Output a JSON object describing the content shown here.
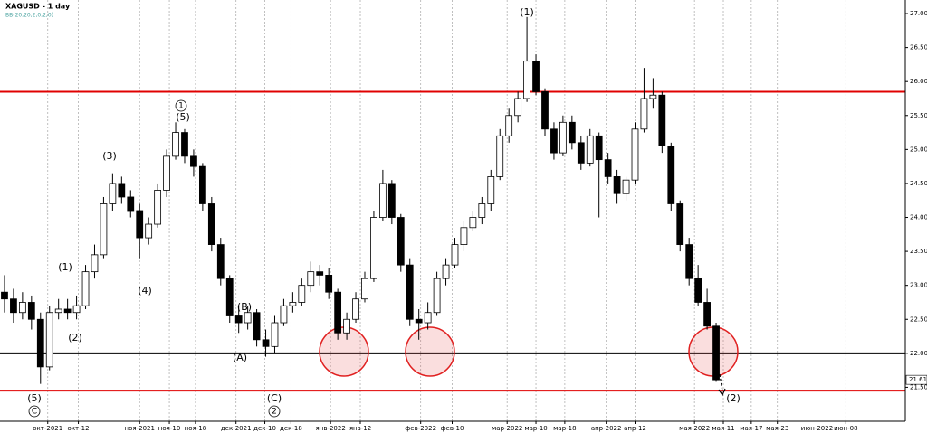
{
  "chart_data": {
    "type": "candlestick",
    "title": "XAGUSD - 1 day",
    "indicator": "BB(20,20,2,0,2,0)",
    "up_color": "#ffffff",
    "down_color": "#000000",
    "candles": [
      [
        22.9,
        23.15,
        22.6,
        22.8
      ],
      [
        22.8,
        22.95,
        22.45,
        22.6
      ],
      [
        22.6,
        22.9,
        22.5,
        22.75
      ],
      [
        22.75,
        22.85,
        22.35,
        22.5
      ],
      [
        22.5,
        22.6,
        21.55,
        21.8
      ],
      [
        21.8,
        22.7,
        21.75,
        22.6
      ],
      [
        22.6,
        22.8,
        22.5,
        22.65
      ],
      [
        22.65,
        22.8,
        22.5,
        22.6
      ],
      [
        22.6,
        22.85,
        22.5,
        22.7
      ],
      [
        22.7,
        23.3,
        22.65,
        23.2
      ],
      [
        23.2,
        23.6,
        23.1,
        23.45
      ],
      [
        23.45,
        24.3,
        23.4,
        24.2
      ],
      [
        24.2,
        24.65,
        24.1,
        24.5
      ],
      [
        24.5,
        24.6,
        24.2,
        24.3
      ],
      [
        24.3,
        24.4,
        24.0,
        24.1
      ],
      [
        24.1,
        24.2,
        23.4,
        23.7
      ],
      [
        23.7,
        24.0,
        23.6,
        23.9
      ],
      [
        23.9,
        24.5,
        23.85,
        24.4
      ],
      [
        24.4,
        25.0,
        24.3,
        24.9
      ],
      [
        24.9,
        25.4,
        24.85,
        25.25
      ],
      [
        25.25,
        25.3,
        24.8,
        24.9
      ],
      [
        24.9,
        25.0,
        24.6,
        24.75
      ],
      [
        24.75,
        24.8,
        24.1,
        24.2
      ],
      [
        24.2,
        24.3,
        23.5,
        23.6
      ],
      [
        23.6,
        23.7,
        23.0,
        23.1
      ],
      [
        23.1,
        23.15,
        22.45,
        22.55
      ],
      [
        22.55,
        22.7,
        22.3,
        22.45
      ],
      [
        22.45,
        22.7,
        22.35,
        22.6
      ],
      [
        22.6,
        22.65,
        22.1,
        22.2
      ],
      [
        22.2,
        22.35,
        21.95,
        22.1
      ],
      [
        22.1,
        22.55,
        22.0,
        22.45
      ],
      [
        22.45,
        22.8,
        22.4,
        22.7
      ],
      [
        22.7,
        22.9,
        22.6,
        22.75
      ],
      [
        22.75,
        23.1,
        22.7,
        23.0
      ],
      [
        23.0,
        23.35,
        22.9,
        23.2
      ],
      [
        23.2,
        23.3,
        23.0,
        23.15
      ],
      [
        23.15,
        23.25,
        22.8,
        22.9
      ],
      [
        22.9,
        22.95,
        22.2,
        22.3
      ],
      [
        22.3,
        22.6,
        22.2,
        22.5
      ],
      [
        22.5,
        22.9,
        22.45,
        22.8
      ],
      [
        22.8,
        23.2,
        22.75,
        23.1
      ],
      [
        23.1,
        24.1,
        23.05,
        24.0
      ],
      [
        24.0,
        24.7,
        23.95,
        24.5
      ],
      [
        24.5,
        24.55,
        23.9,
        24.0
      ],
      [
        24.0,
        24.05,
        23.2,
        23.3
      ],
      [
        23.3,
        23.4,
        22.4,
        22.5
      ],
      [
        22.5,
        22.65,
        22.2,
        22.45
      ],
      [
        22.45,
        22.75,
        22.35,
        22.6
      ],
      [
        22.6,
        23.2,
        22.55,
        23.1
      ],
      [
        23.1,
        23.4,
        23.0,
        23.3
      ],
      [
        23.3,
        23.7,
        23.25,
        23.6
      ],
      [
        23.6,
        23.95,
        23.5,
        23.85
      ],
      [
        23.85,
        24.1,
        23.8,
        24.0
      ],
      [
        24.0,
        24.3,
        23.9,
        24.2
      ],
      [
        24.2,
        24.7,
        24.1,
        24.6
      ],
      [
        24.6,
        25.3,
        24.55,
        25.2
      ],
      [
        25.2,
        25.6,
        25.1,
        25.5
      ],
      [
        25.5,
        25.85,
        25.4,
        25.75
      ],
      [
        25.75,
        26.95,
        25.7,
        26.3
      ],
      [
        26.3,
        26.4,
        25.8,
        25.85
      ],
      [
        25.85,
        25.9,
        25.2,
        25.3
      ],
      [
        25.3,
        25.4,
        24.85,
        24.95
      ],
      [
        24.95,
        25.5,
        24.9,
        25.4
      ],
      [
        25.4,
        25.5,
        25.0,
        25.1
      ],
      [
        25.1,
        25.2,
        24.7,
        24.8
      ],
      [
        24.8,
        25.3,
        24.75,
        25.2
      ],
      [
        25.2,
        25.25,
        24.0,
        24.85
      ],
      [
        24.85,
        24.95,
        24.5,
        24.6
      ],
      [
        24.6,
        24.7,
        24.2,
        24.35
      ],
      [
        24.35,
        24.6,
        24.25,
        24.55
      ],
      [
        24.55,
        25.4,
        24.5,
        25.3
      ],
      [
        25.3,
        26.2,
        25.25,
        25.75
      ],
      [
        25.75,
        26.05,
        25.6,
        25.8
      ],
      [
        25.8,
        25.85,
        24.95,
        25.05
      ],
      [
        25.05,
        25.1,
        24.1,
        24.2
      ],
      [
        24.2,
        24.25,
        23.5,
        23.6
      ],
      [
        23.6,
        23.7,
        23.0,
        23.1
      ],
      [
        23.1,
        23.3,
        22.7,
        22.75
      ],
      [
        22.75,
        22.95,
        22.35,
        22.4
      ],
      [
        22.4,
        22.45,
        21.58,
        21.61
      ]
    ],
    "ylim": [
      21.0,
      27.2
    ],
    "yticks": [
      {
        "value": 21.5,
        "label": "21.50"
      },
      {
        "value": 22,
        "label": "22.00"
      },
      {
        "value": 22.5,
        "label": "22.50"
      },
      {
        "value": 23,
        "label": "23.00"
      },
      {
        "value": 23.5,
        "label": "23.50"
      },
      {
        "value": 24,
        "label": "24.00"
      },
      {
        "value": 24.5,
        "label": "24.50"
      },
      {
        "value": 25,
        "label": "25.00"
      },
      {
        "value": 25.5,
        "label": "25.50"
      },
      {
        "value": 26,
        "label": "26.00"
      },
      {
        "value": 26.5,
        "label": "26.50"
      },
      {
        "value": 27,
        "label": "27.00"
      }
    ],
    "xlim": [
      -0.5,
      100
    ],
    "xticks": [
      {
        "value": 4.8,
        "label": "окт-2021"
      },
      {
        "value": 8.2,
        "label": "окт-12"
      },
      {
        "value": 15,
        "label": "ноя-2021"
      },
      {
        "value": 18.3,
        "label": "ноя-10"
      },
      {
        "value": 21.2,
        "label": "ноя-18"
      },
      {
        "value": 25.7,
        "label": "дек-2021"
      },
      {
        "value": 28.9,
        "label": "дек-10"
      },
      {
        "value": 31.8,
        "label": "дек-18"
      },
      {
        "value": 36.2,
        "label": "янв-2022"
      },
      {
        "value": 39.5,
        "label": "янв-12"
      },
      {
        "value": 46.2,
        "label": "фев-2022"
      },
      {
        "value": 49.7,
        "label": "фев-10"
      },
      {
        "value": 55.8,
        "label": "мар-2022"
      },
      {
        "value": 59,
        "label": "мар-10"
      },
      {
        "value": 62.2,
        "label": "мар-18"
      },
      {
        "value": 66.8,
        "label": "апр-2022"
      },
      {
        "value": 70,
        "label": "апр-12"
      },
      {
        "value": 76.6,
        "label": "мая-2022"
      },
      {
        "value": 79.8,
        "label": "мая-11"
      },
      {
        "value": 82.9,
        "label": "мая-17"
      },
      {
        "value": 85.8,
        "label": "мая-23"
      },
      {
        "value": 90.2,
        "label": "июн-2022"
      },
      {
        "value": 93.4,
        "label": "июн-08"
      }
    ],
    "levels": [
      {
        "value": 25.85,
        "color": "#e00000"
      },
      {
        "value": 22,
        "color": "#000000"
      },
      {
        "value": 21.45,
        "color": "#e00000"
      }
    ],
    "last_price": {
      "value": 21.61,
      "label": "21.61"
    },
    "annotations": [
      "(1)",
      "1",
      "(5)",
      "(3)",
      "(1)",
      "(2)",
      "(4)",
      "(B)",
      "(A)",
      "(5)",
      "C",
      "(C)",
      "2",
      "(2)"
    ]
  }
}
